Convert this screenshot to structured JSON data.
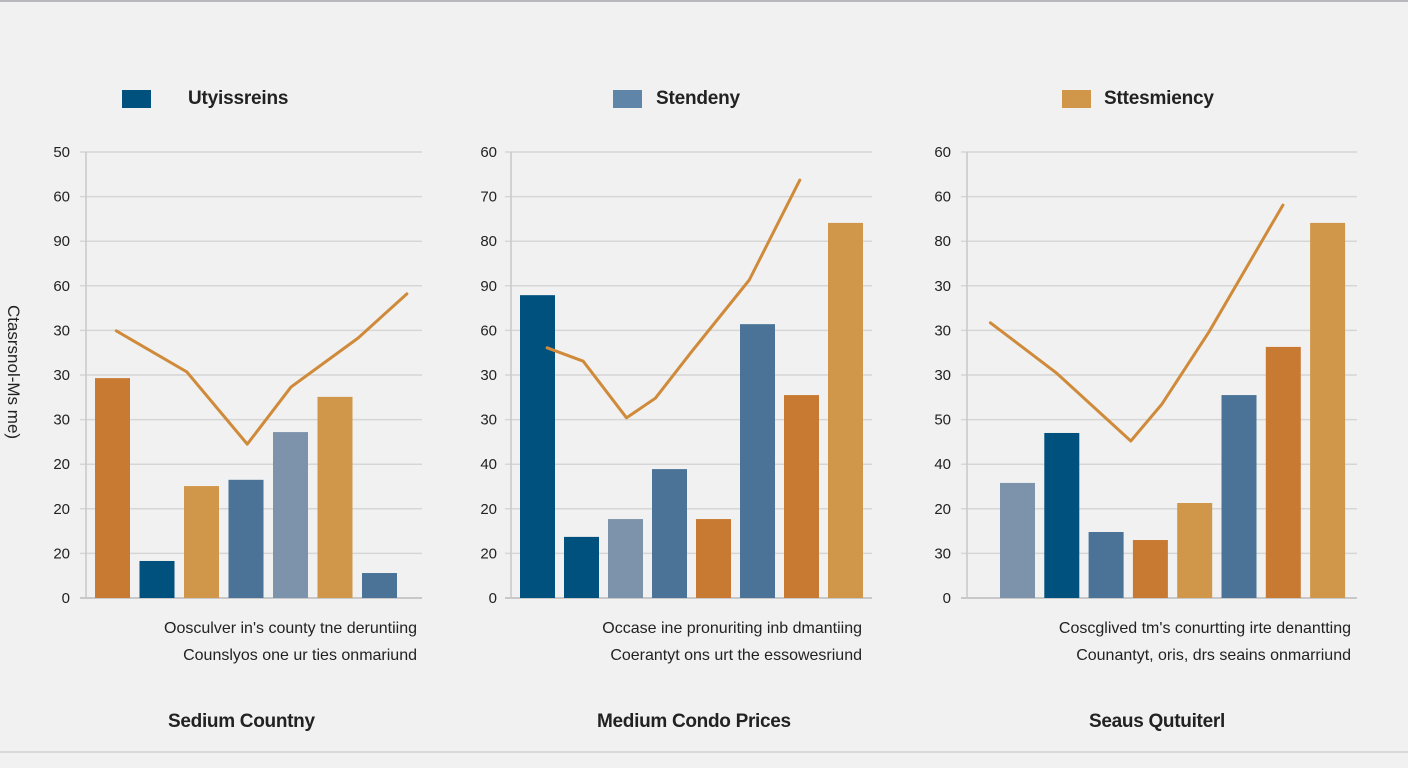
{
  "colors": {
    "navy": "#00517e",
    "steel": "#4a7397",
    "greyblue": "#7d92ab",
    "orange": "#c97a32",
    "gold": "#d0974a",
    "line": "#cf8a3a",
    "grid": "#d6d6d6",
    "axis": "#c8c8c8"
  },
  "y_axis_label": "Ctasrsnol-Ms me)",
  "chart_data": [
    {
      "type": "bar",
      "legend": {
        "label": "Utyissreins",
        "color": "#00517e",
        "placement": "top"
      },
      "title": "Sedium Countny",
      "caption": [
        "Oosculver in's county tne deruntiing",
        "Counslyos one ur ties onmariund"
      ],
      "ylabel": "Ctasrsnol-Ms me)",
      "yticks": [
        "50",
        "60",
        "90",
        "60",
        "30",
        "30",
        "30",
        "20",
        "20",
        "20",
        "0"
      ],
      "grid": true,
      "value_scale": "fraction of axis height (0 = baseline, 1 = top gridline)",
      "bars": [
        {
          "value": 0.493,
          "color": "#c97a32"
        },
        {
          "value": 0.083,
          "color": "#00517e"
        },
        {
          "value": 0.251,
          "color": "#d0974a"
        },
        {
          "value": 0.265,
          "color": "#4a7397"
        },
        {
          "value": 0.372,
          "color": "#7d92ab"
        },
        {
          "value": 0.451,
          "color": "#d0974a"
        },
        {
          "value": 0.056,
          "color": "#4a7397"
        }
      ],
      "line": {
        "color": "#cf8a3a",
        "points": [
          {
            "x": 0.09,
            "y": 0.599
          },
          {
            "x": 0.3,
            "y": 0.507
          },
          {
            "x": 0.48,
            "y": 0.345
          },
          {
            "x": 0.61,
            "y": 0.473
          },
          {
            "x": 0.81,
            "y": 0.583
          },
          {
            "x": 0.955,
            "y": 0.682
          }
        ]
      }
    },
    {
      "type": "bar",
      "legend": {
        "label": "Stendeny",
        "color": "#5f86a8",
        "placement": "top"
      },
      "title": "Medium Condo Prices",
      "caption": [
        "Occase ine pronuriting inb dmantiing",
        "Coerantyt ons urt the essowesriund"
      ],
      "yticks": [
        "60",
        "70",
        "80",
        "90",
        "60",
        "30",
        "30",
        "40",
        "20",
        "20",
        "0"
      ],
      "grid": true,
      "value_scale": "fraction of axis height (0 = baseline, 1 = top gridline)",
      "bars": [
        {
          "value": 0.679,
          "color": "#00517e"
        },
        {
          "value": 0.137,
          "color": "#00517e"
        },
        {
          "value": 0.177,
          "color": "#7d92ab"
        },
        {
          "value": 0.289,
          "color": "#4a7397"
        },
        {
          "value": 0.177,
          "color": "#c97a32"
        },
        {
          "value": 0.614,
          "color": "#4a7397"
        },
        {
          "value": 0.455,
          "color": "#c97a32"
        },
        {
          "value": 0.841,
          "color": "#d0974a"
        }
      ],
      "line": {
        "color": "#cf8a3a",
        "points": [
          {
            "x": 0.1,
            "y": 0.561
          },
          {
            "x": 0.2,
            "y": 0.531
          },
          {
            "x": 0.32,
            "y": 0.404
          },
          {
            "x": 0.4,
            "y": 0.448
          },
          {
            "x": 0.5,
            "y": 0.552
          },
          {
            "x": 0.66,
            "y": 0.713
          },
          {
            "x": 0.8,
            "y": 0.937
          }
        ]
      }
    },
    {
      "type": "bar",
      "legend": {
        "label": "Sttesmiency",
        "color": "#d0974a",
        "placement": "top"
      },
      "title": "Seaus Qutuiterl",
      "caption": [
        "Coscglived tm's conurtting irte denantting",
        "Counantyt, oris, drs seains onmarriund"
      ],
      "yticks": [
        "60",
        "60",
        "80",
        "30",
        "30",
        "30",
        "50",
        "40",
        "20",
        "30",
        "0"
      ],
      "grid": true,
      "value_scale": "fraction of axis height (0 = baseline, 1 = top gridline)",
      "bars": [
        {
          "value": 0.258,
          "color": "#7d92ab"
        },
        {
          "value": 0.37,
          "color": "#00517e"
        },
        {
          "value": 0.148,
          "color": "#4a7397"
        },
        {
          "value": 0.13,
          "color": "#c97a32"
        },
        {
          "value": 0.213,
          "color": "#d0974a"
        },
        {
          "value": 0.455,
          "color": "#4a7397"
        },
        {
          "value": 0.563,
          "color": "#c97a32"
        },
        {
          "value": 0.841,
          "color": "#d0974a"
        }
      ],
      "line": {
        "color": "#cf8a3a",
        "points": [
          {
            "x": 0.06,
            "y": 0.617
          },
          {
            "x": 0.23,
            "y": 0.504
          },
          {
            "x": 0.42,
            "y": 0.352
          },
          {
            "x": 0.5,
            "y": 0.435
          },
          {
            "x": 0.62,
            "y": 0.596
          },
          {
            "x": 0.81,
            "y": 0.881
          }
        ]
      }
    }
  ]
}
